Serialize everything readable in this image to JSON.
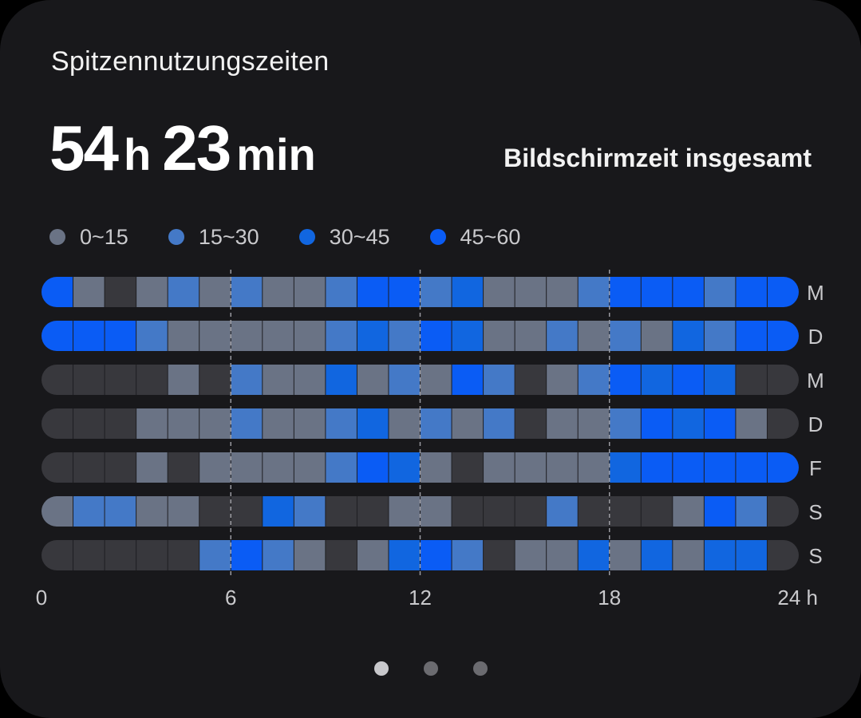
{
  "card": {
    "title": "Spitzennutzungszeiten",
    "total": {
      "hours": "54",
      "hours_unit": "h",
      "minutes": "23",
      "minutes_unit": "min",
      "label": "Bildschirmzeit insgesamt"
    }
  },
  "colors": {
    "none": "#38383d",
    "level_0_15": "#6a7385",
    "level_15_30": "#4479c7",
    "level_30_45": "#1166e0",
    "level_45_60": "#0a5cf5",
    "card_background": "#18181b"
  },
  "chart_data": {
    "type": "heatmap",
    "title": "",
    "legend": [
      {
        "label": "0~15",
        "level": 1,
        "color": "#6a7385"
      },
      {
        "label": "15~30",
        "level": 2,
        "color": "#4479c7"
      },
      {
        "label": "30~45",
        "level": 3,
        "color": "#1166e0"
      },
      {
        "label": "45~60",
        "level": 4,
        "color": "#0a5cf5"
      }
    ],
    "legend_position": "top-left",
    "x_ticks": [
      "0",
      "6",
      "12",
      "18",
      "24 h"
    ],
    "x_tick_values": [
      0,
      6,
      12,
      18,
      24
    ],
    "x_range": [
      0,
      24
    ],
    "gridlines_at": [
      6,
      12,
      18
    ],
    "rows": [
      {
        "day": "M",
        "levels": [
          4,
          1,
          0,
          1,
          2,
          1,
          2,
          1,
          1,
          2,
          4,
          4,
          2,
          3,
          1,
          1,
          1,
          2,
          4,
          4,
          4,
          2,
          4,
          4
        ]
      },
      {
        "day": "D",
        "levels": [
          4,
          4,
          4,
          2,
          1,
          1,
          1,
          1,
          1,
          2,
          3,
          2,
          4,
          3,
          1,
          1,
          2,
          1,
          2,
          1,
          3,
          2,
          4,
          4
        ]
      },
      {
        "day": "M",
        "levels": [
          0,
          0,
          0,
          0,
          1,
          0,
          2,
          1,
          1,
          3,
          1,
          2,
          1,
          4,
          2,
          0,
          1,
          2,
          4,
          3,
          4,
          3,
          0,
          0
        ]
      },
      {
        "day": "D",
        "levels": [
          0,
          0,
          0,
          1,
          1,
          1,
          2,
          1,
          1,
          2,
          3,
          1,
          2,
          1,
          2,
          0,
          1,
          1,
          2,
          4,
          3,
          4,
          1,
          0
        ]
      },
      {
        "day": "F",
        "levels": [
          0,
          0,
          0,
          1,
          0,
          1,
          1,
          1,
          1,
          2,
          4,
          3,
          1,
          0,
          1,
          1,
          1,
          1,
          3,
          4,
          4,
          4,
          4,
          4
        ]
      },
      {
        "day": "S",
        "levels": [
          1,
          2,
          2,
          1,
          1,
          0,
          0,
          3,
          2,
          0,
          0,
          1,
          1,
          0,
          0,
          0,
          2,
          0,
          0,
          0,
          1,
          4,
          2,
          0
        ]
      },
      {
        "day": "S",
        "levels": [
          0,
          0,
          0,
          0,
          0,
          2,
          4,
          2,
          1,
          0,
          1,
          3,
          4,
          2,
          0,
          1,
          1,
          3,
          1,
          3,
          1,
          3,
          3,
          0
        ]
      }
    ]
  },
  "pagination": {
    "count": 3,
    "active": 0
  }
}
